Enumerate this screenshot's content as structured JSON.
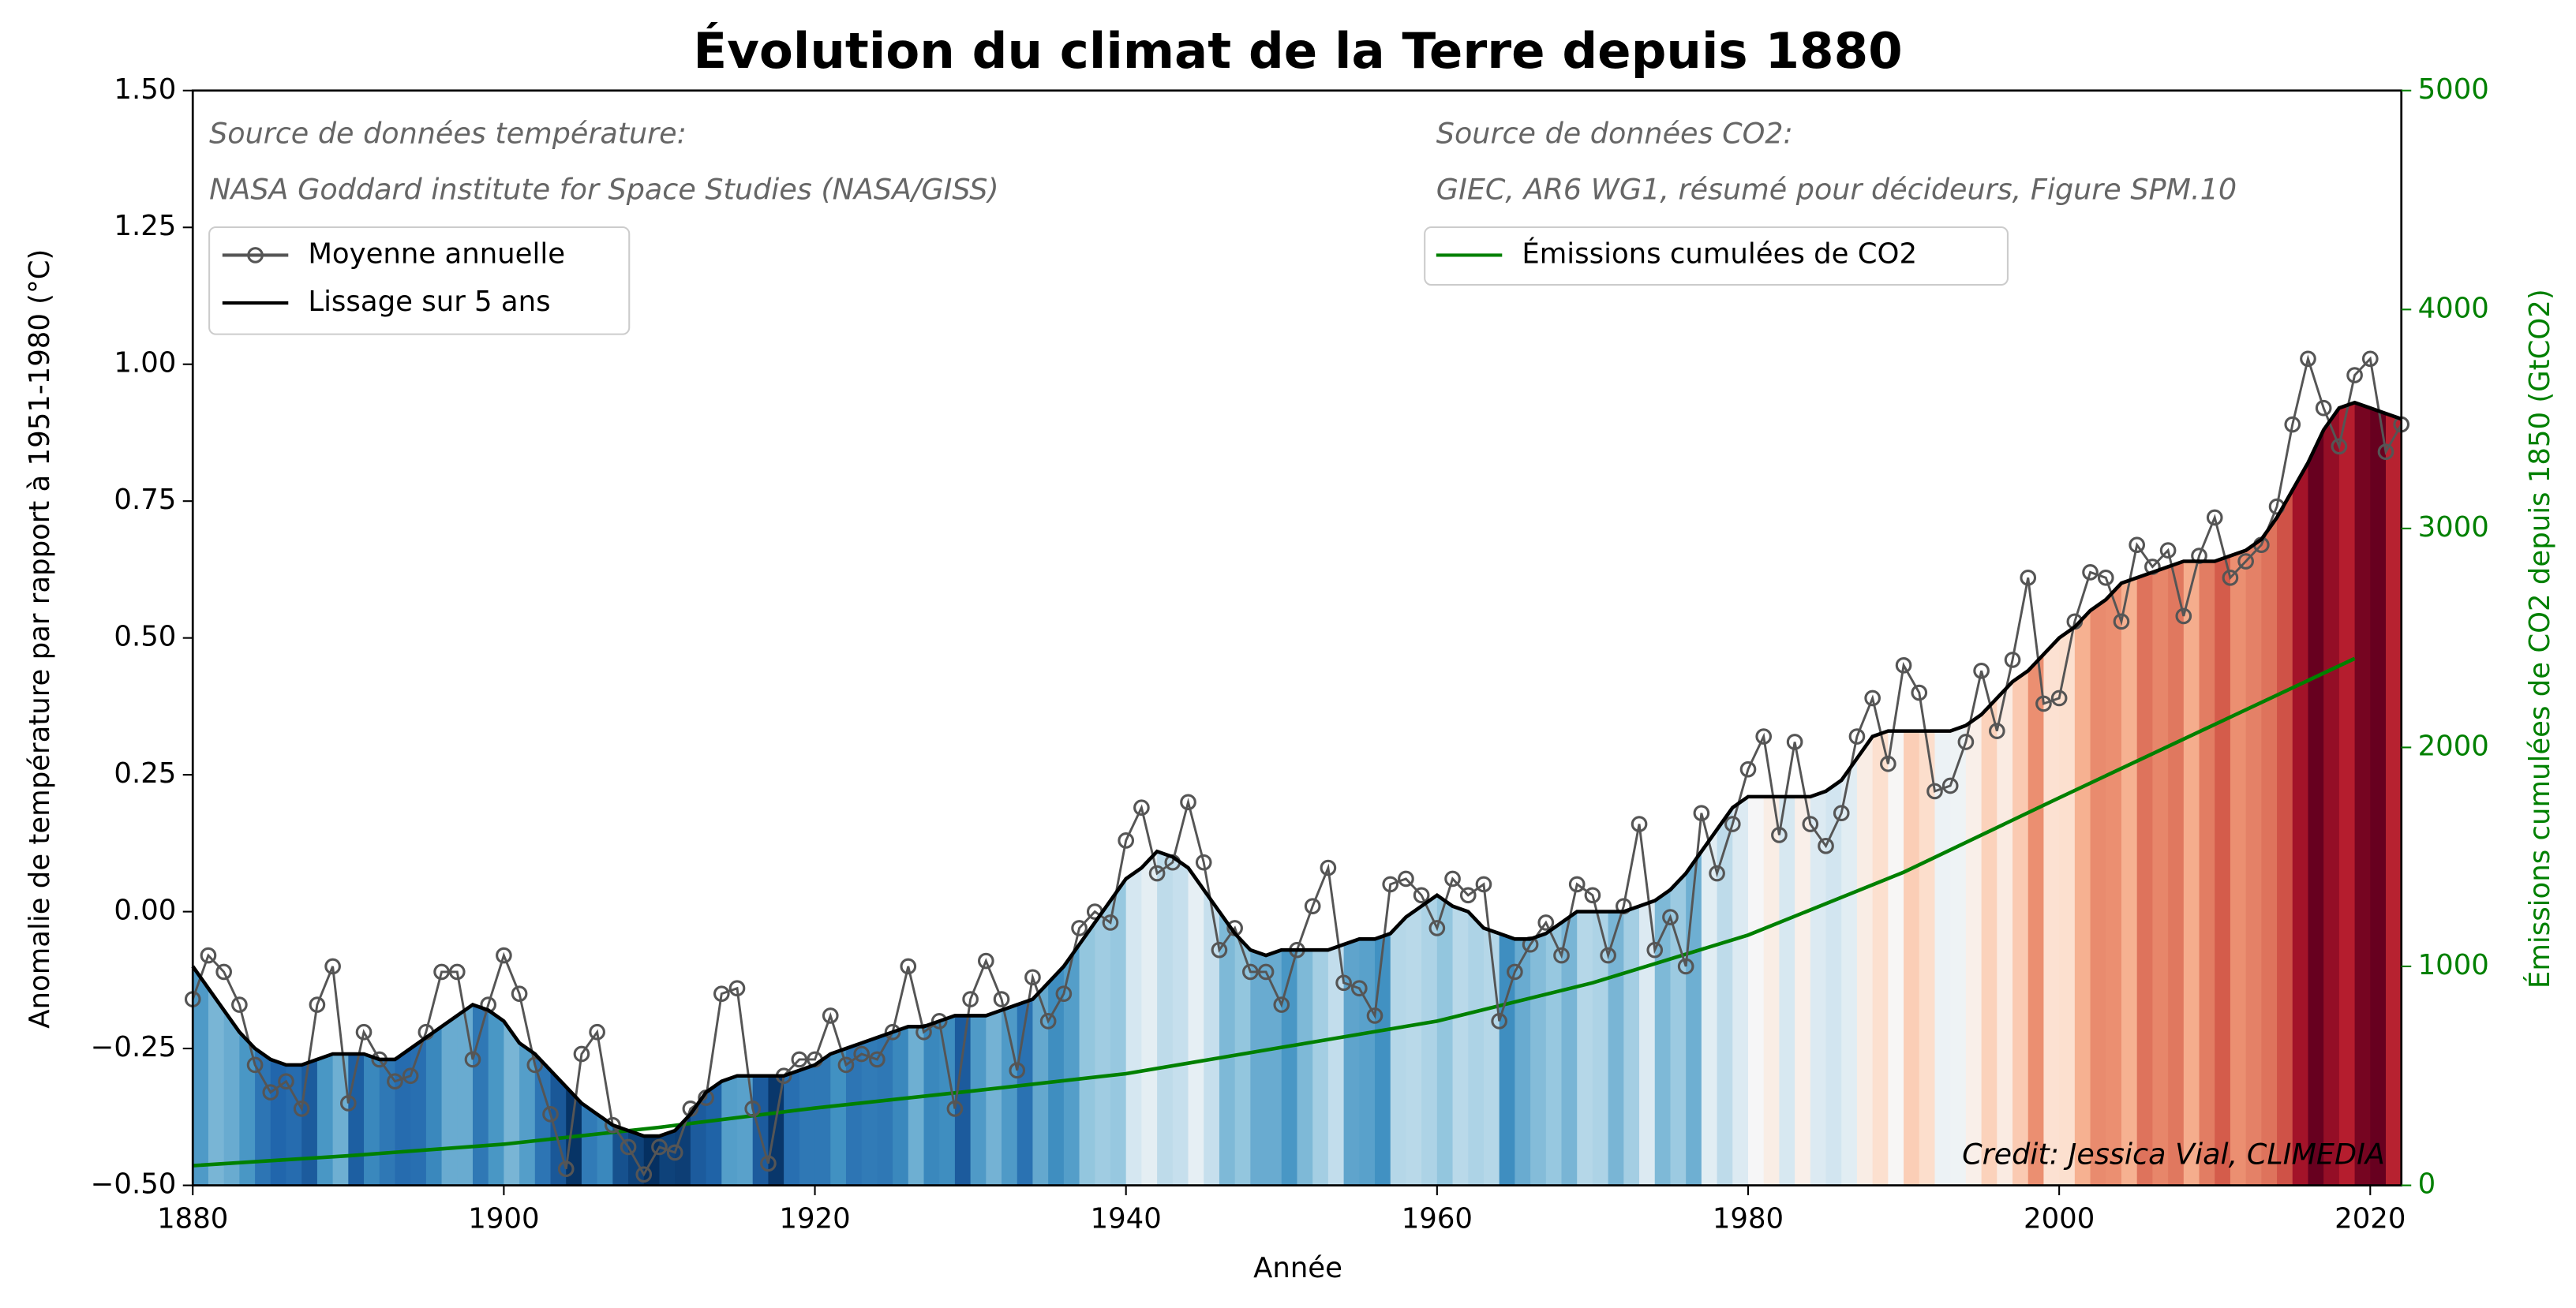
{
  "chart_data": {
    "type": "line",
    "title": "Évolution du climat de la Terre depuis 1880",
    "x_label": "Année",
    "y_label": "Anomalie de température par rapport à 1951-1980 (°C)",
    "y2_label": "Émissions cumulées de CO2 depuis 1850 (GtCO2)",
    "annotations": [
      "Source de données température:",
      "NASA Goddard institute for Space Studies (NASA/GISS)",
      "Source de données CO2:",
      "GIEC, AR6 WG1, résumé pour décideurs, Figure SPM.10",
      "Credit: Jessica Vial, CLIMEDIA"
    ],
    "x": [
      1880,
      1881,
      1882,
      1883,
      1884,
      1885,
      1886,
      1887,
      1888,
      1889,
      1890,
      1891,
      1892,
      1893,
      1894,
      1895,
      1896,
      1897,
      1898,
      1899,
      1900,
      1901,
      1902,
      1903,
      1904,
      1905,
      1906,
      1907,
      1908,
      1909,
      1910,
      1911,
      1912,
      1913,
      1914,
      1915,
      1916,
      1917,
      1918,
      1919,
      1920,
      1921,
      1922,
      1923,
      1924,
      1925,
      1926,
      1927,
      1928,
      1929,
      1930,
      1931,
      1932,
      1933,
      1934,
      1935,
      1936,
      1937,
      1938,
      1939,
      1940,
      1941,
      1942,
      1943,
      1944,
      1945,
      1946,
      1947,
      1948,
      1949,
      1950,
      1951,
      1952,
      1953,
      1954,
      1955,
      1956,
      1957,
      1958,
      1959,
      1960,
      1961,
      1962,
      1963,
      1964,
      1965,
      1966,
      1967,
      1968,
      1969,
      1970,
      1971,
      1972,
      1973,
      1974,
      1975,
      1976,
      1977,
      1978,
      1979,
      1980,
      1981,
      1982,
      1983,
      1984,
      1985,
      1986,
      1987,
      1988,
      1989,
      1990,
      1991,
      1992,
      1993,
      1994,
      1995,
      1996,
      1997,
      1998,
      1999,
      2000,
      2001,
      2002,
      2003,
      2004,
      2005,
      2006,
      2007,
      2008,
      2009,
      2010,
      2011,
      2012,
      2013,
      2014,
      2015,
      2016,
      2017,
      2018,
      2019,
      2020,
      2021,
      2022
    ],
    "series": [
      {
        "name": "Moyenne annuelle",
        "color": "#555555",
        "marker": "circle",
        "values": [
          -0.16,
          -0.08,
          -0.11,
          -0.17,
          -0.28,
          -0.33,
          -0.31,
          -0.36,
          -0.17,
          -0.1,
          -0.35,
          -0.22,
          -0.27,
          -0.31,
          -0.3,
          -0.22,
          -0.11,
          -0.11,
          -0.27,
          -0.17,
          -0.08,
          -0.15,
          -0.28,
          -0.37,
          -0.47,
          -0.26,
          -0.22,
          -0.39,
          -0.43,
          -0.48,
          -0.43,
          -0.44,
          -0.36,
          -0.34,
          -0.15,
          -0.14,
          -0.36,
          -0.46,
          -0.3,
          -0.27,
          -0.27,
          -0.19,
          -0.28,
          -0.26,
          -0.27,
          -0.22,
          -0.1,
          -0.22,
          -0.2,
          -0.36,
          -0.16,
          -0.09,
          -0.16,
          -0.29,
          -0.12,
          -0.2,
          -0.15,
          -0.03,
          0.0,
          -0.02,
          0.13,
          0.19,
          0.07,
          0.09,
          0.2,
          0.09,
          -0.07,
          -0.03,
          -0.11,
          -0.11,
          -0.17,
          -0.07,
          0.01,
          0.08,
          -0.13,
          -0.14,
          -0.19,
          0.05,
          0.06,
          0.03,
          -0.03,
          0.06,
          0.03,
          0.05,
          -0.2,
          -0.11,
          -0.06,
          -0.02,
          -0.08,
          0.05,
          0.03,
          -0.08,
          0.01,
          0.16,
          -0.07,
          -0.01,
          -0.1,
          0.18,
          0.07,
          0.16,
          0.26,
          0.32,
          0.14,
          0.31,
          0.16,
          0.12,
          0.18,
          0.32,
          0.39,
          0.27,
          0.45,
          0.4,
          0.22,
          0.23,
          0.31,
          0.44,
          0.33,
          0.46,
          0.61,
          0.38,
          0.39,
          0.53,
          0.62,
          0.61,
          0.53,
          0.67,
          0.63,
          0.66,
          0.54,
          0.65,
          0.72,
          0.61,
          0.64,
          0.67,
          0.74,
          0.89,
          1.01,
          0.92,
          0.85,
          0.98,
          1.01,
          0.84,
          0.89
        ]
      },
      {
        "name": "Lissage sur 5 ans",
        "color": "#000000",
        "values": [
          -0.1,
          -0.14,
          -0.18,
          -0.22,
          -0.25,
          -0.27,
          -0.28,
          -0.28,
          -0.27,
          -0.26,
          -0.26,
          -0.26,
          -0.27,
          -0.27,
          -0.25,
          -0.23,
          -0.21,
          -0.19,
          -0.17,
          -0.18,
          -0.2,
          -0.24,
          -0.26,
          -0.29,
          -0.32,
          -0.35,
          -0.37,
          -0.39,
          -0.4,
          -0.41,
          -0.41,
          -0.4,
          -0.37,
          -0.33,
          -0.31,
          -0.3,
          -0.3,
          -0.3,
          -0.3,
          -0.29,
          -0.28,
          -0.26,
          -0.25,
          -0.24,
          -0.23,
          -0.22,
          -0.21,
          -0.21,
          -0.2,
          -0.19,
          -0.19,
          -0.19,
          -0.18,
          -0.17,
          -0.16,
          -0.13,
          -0.1,
          -0.06,
          -0.02,
          0.02,
          0.06,
          0.08,
          0.11,
          0.1,
          0.08,
          0.04,
          0.0,
          -0.04,
          -0.07,
          -0.08,
          -0.07,
          -0.07,
          -0.07,
          -0.07,
          -0.06,
          -0.05,
          -0.05,
          -0.04,
          -0.01,
          0.01,
          0.03,
          0.01,
          0.0,
          -0.03,
          -0.04,
          -0.05,
          -0.05,
          -0.04,
          -0.02,
          0.0,
          0.0,
          0.0,
          0.0,
          0.01,
          0.02,
          0.04,
          0.07,
          0.11,
          0.15,
          0.19,
          0.21,
          0.21,
          0.21,
          0.21,
          0.21,
          0.22,
          0.24,
          0.28,
          0.32,
          0.33,
          0.33,
          0.33,
          0.33,
          0.33,
          0.34,
          0.36,
          0.39,
          0.42,
          0.44,
          0.47,
          0.5,
          0.52,
          0.55,
          0.57,
          0.6,
          0.61,
          0.62,
          0.63,
          0.64,
          0.64,
          0.64,
          0.65,
          0.66,
          0.68,
          0.72,
          0.77,
          0.82,
          0.88,
          0.92,
          0.93,
          0.92,
          0.91,
          0.9
        ]
      },
      {
        "name": "Émissions cumulées de CO2",
        "color": "#008000",
        "axis": "y2",
        "x": [
          1880,
          1890,
          1900,
          1910,
          1920,
          1930,
          1940,
          1950,
          1960,
          1970,
          1980,
          1990,
          2000,
          2010,
          2019
        ],
        "values": [
          90,
          135,
          188,
          265,
          353,
          430,
          510,
          630,
          750,
          925,
          1143,
          1430,
          1770,
          2105,
          2406
        ]
      }
    ],
    "xlim": [
      1880,
      2022
    ],
    "xticks": [
      1880,
      1900,
      1920,
      1940,
      1960,
      1980,
      2000,
      2020
    ],
    "ylim": [
      -0.5,
      1.5
    ],
    "yticks": [
      {
        "value": -0.5,
        "label": "−0.50"
      },
      {
        "value": -0.25,
        "label": "−0.25"
      },
      {
        "value": 0,
        "label": "0.00"
      },
      0.25,
      {
        "value": 0.5,
        "label": "0.50"
      },
      0.75,
      {
        "value": 1,
        "label": "1.00"
      },
      1.25,
      {
        "value": 1.5,
        "label": "1.50"
      }
    ],
    "y2lim": [
      0,
      5000
    ],
    "y2ticks": [
      0,
      1000,
      2000,
      3000,
      4000,
      5000
    ],
    "y2_color": "#008000",
    "stripes": true,
    "legend": "upper left"
  }
}
